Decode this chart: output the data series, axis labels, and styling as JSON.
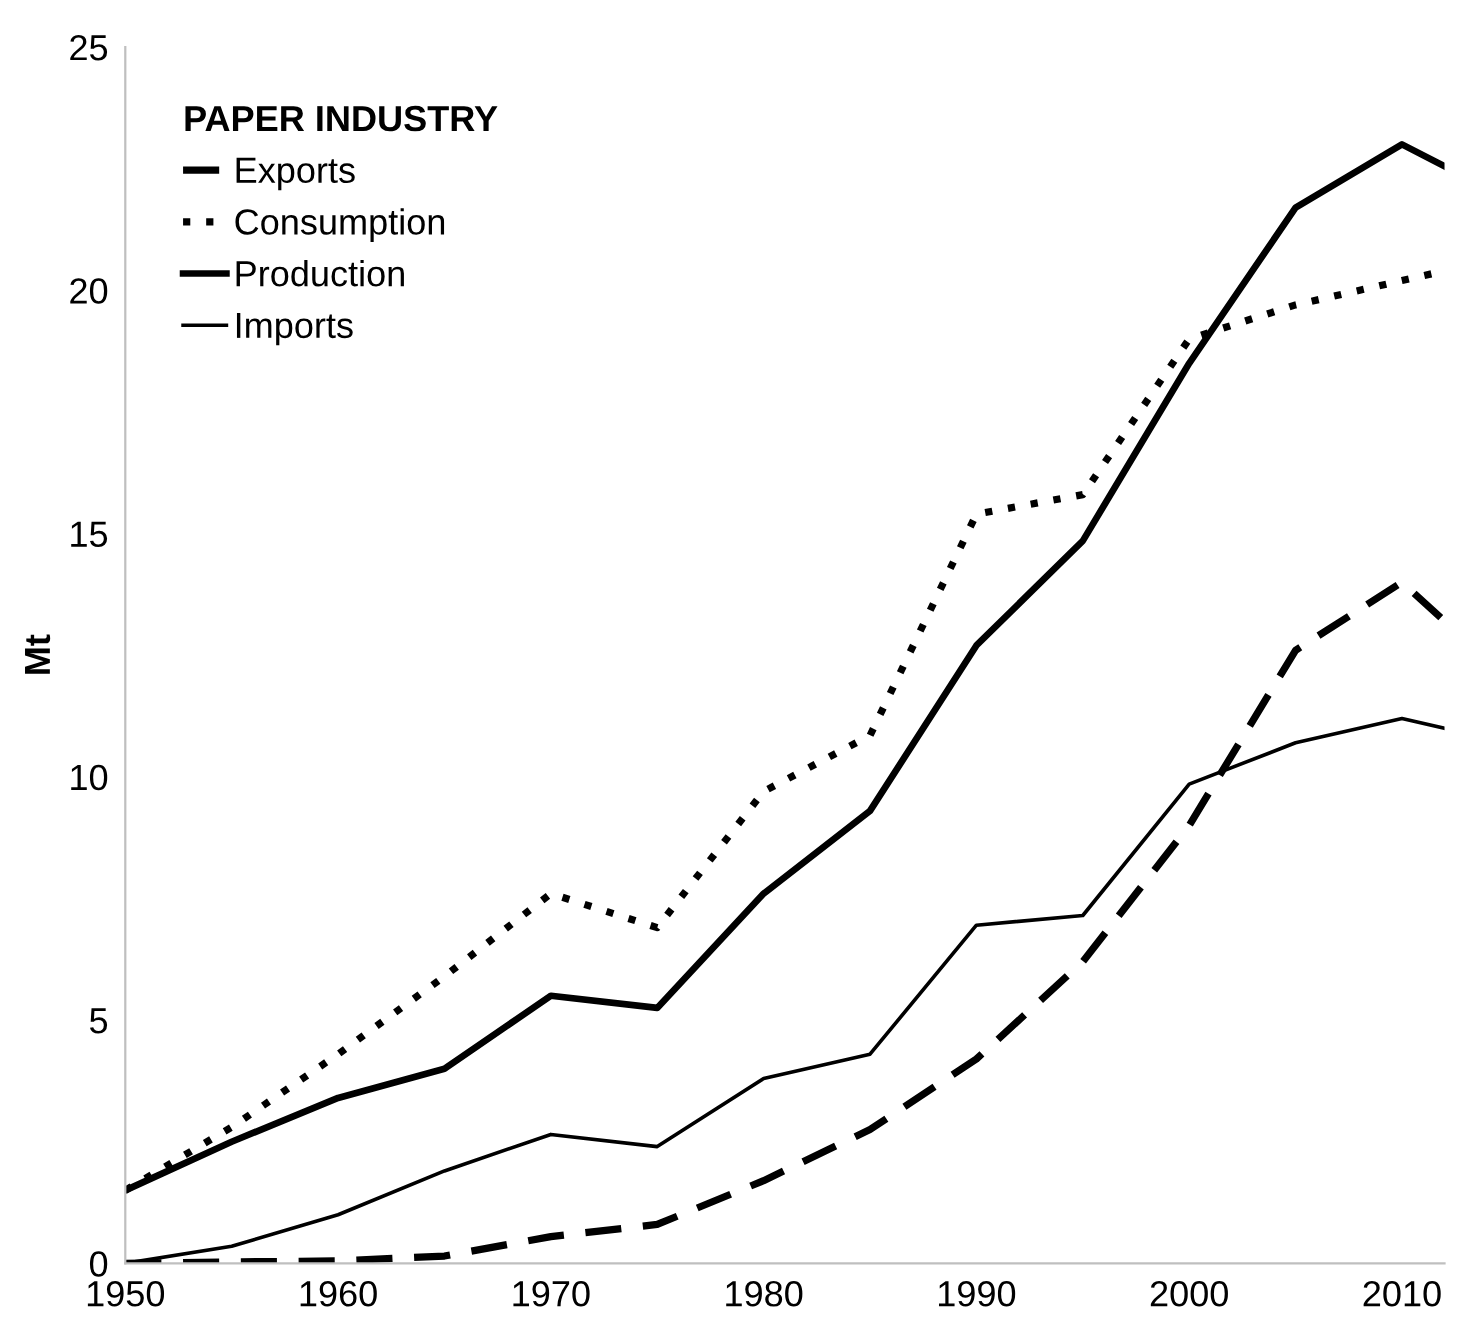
{
  "chart_data": {
    "type": "line",
    "ylabel": "Mt",
    "legend_title": "PAPER INDUSTRY",
    "legend": "top left",
    "grid": false,
    "x": [
      1950,
      1955,
      1960,
      1965,
      1970,
      1975,
      1980,
      1985,
      1990,
      1995,
      2000,
      2005,
      2010,
      2012
    ],
    "xlim": [
      1950,
      2012
    ],
    "xticks": [
      1950,
      1960,
      1970,
      1980,
      1990,
      2000,
      2010
    ],
    "ylim": [
      0,
      25
    ],
    "yticks": [
      0,
      5,
      10,
      15,
      20,
      25
    ],
    "series": [
      {
        "name": "Exports",
        "color": "#000000",
        "line_style": "dashed",
        "values": [
          0,
          0.03,
          0.05,
          0.15,
          0.55,
          0.8,
          1.7,
          2.75,
          4.2,
          6.2,
          9.0,
          12.6,
          14.0,
          13.2
        ]
      },
      {
        "name": "Consumption",
        "color": "#000000",
        "line_style": "dotted",
        "values": [
          1.5,
          2.8,
          4.3,
          5.9,
          7.6,
          6.9,
          9.7,
          10.85,
          15.4,
          15.8,
          19.0,
          19.7,
          20.2,
          20.4
        ]
      },
      {
        "name": "Production",
        "color": "#000000",
        "line_style": "solid",
        "values": [
          1.5,
          2.5,
          3.4,
          4.0,
          5.5,
          5.25,
          7.6,
          9.3,
          12.7,
          14.85,
          18.5,
          21.7,
          23.0,
          22.55
        ]
      },
      {
        "name": "Imports",
        "color": "#000000",
        "line_style": "solid",
        "values": [
          0,
          0.35,
          1.0,
          1.9,
          2.65,
          2.4,
          3.8,
          4.3,
          6.95,
          7.15,
          9.85,
          10.7,
          11.2,
          11.0
        ]
      }
    ]
  }
}
